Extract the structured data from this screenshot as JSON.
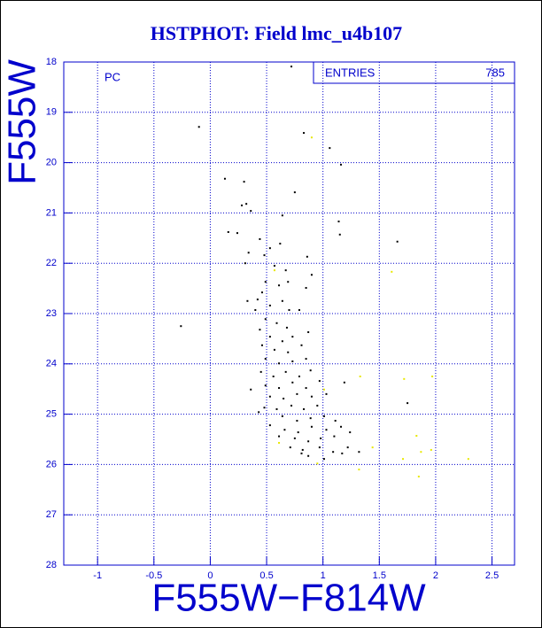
{
  "chart_data": {
    "type": "scatter",
    "title": "HSTPHOT: Field lmc_u4b107",
    "annotation": "PC",
    "stats_label": "ENTRIES",
    "stats_value": 785,
    "xlabel": "F555W−F814W",
    "ylabel": "F555W",
    "xlim": [
      -1.3,
      2.7
    ],
    "ylim": [
      28,
      18
    ],
    "xticks": [
      -1,
      -0.5,
      0,
      0.5,
      1,
      1.5,
      2,
      2.5
    ],
    "yticks": [
      18,
      19,
      20,
      21,
      22,
      23,
      24,
      25,
      26,
      27,
      28
    ],
    "grid": true,
    "axis_color": "#0000cc",
    "series": [
      {
        "color": "#000000",
        "x": [
          0.72,
          -0.1,
          0.83,
          1.06,
          1.16,
          0.13,
          0.3,
          0.75,
          0.28,
          0.32,
          0.36,
          0.64,
          1.14,
          0.16,
          0.24,
          1.15,
          1.66,
          0.44,
          0.62,
          0.53,
          0.34,
          0.48,
          0.86,
          0.31,
          0.57,
          0.67,
          0.9,
          0.49,
          0.61,
          0.69,
          0.46,
          0.85,
          0.33,
          0.42,
          0.53,
          0.64,
          0.4,
          0.7,
          0.79,
          -0.26,
          0.49,
          0.59,
          0.68,
          0.44,
          0.87,
          0.53,
          0.64,
          0.73,
          0.46,
          0.57,
          0.69,
          0.81,
          0.49,
          0.61,
          0.73,
          0.85,
          0.45,
          0.56,
          0.67,
          0.79,
          0.89,
          0.49,
          0.61,
          0.73,
          0.85,
          0.97,
          0.36,
          0.53,
          0.65,
          0.77,
          0.9,
          1.03,
          1.19,
          0.48,
          0.59,
          0.72,
          0.83,
          0.95,
          1.75,
          0.43,
          0.64,
          0.77,
          0.89,
          1.01,
          1.11,
          0.53,
          0.66,
          0.78,
          0.9,
          1.03,
          1.16,
          0.61,
          0.75,
          0.87,
          0.98,
          1.1,
          1.24,
          0.71,
          0.82,
          0.97,
          1.09,
          1.22,
          1.32,
          0.87,
          1.01,
          0.81,
          1.17
        ],
        "values": [
          18.09,
          19.29,
          19.41,
          19.71,
          20.04,
          20.32,
          20.38,
          20.59,
          20.85,
          20.82,
          20.96,
          21.05,
          21.17,
          21.38,
          21.4,
          21.43,
          21.57,
          21.52,
          21.61,
          21.7,
          21.79,
          21.84,
          21.87,
          22.0,
          22.05,
          22.14,
          22.23,
          22.37,
          22.44,
          22.37,
          22.58,
          22.49,
          22.75,
          22.72,
          22.84,
          22.75,
          22.93,
          22.93,
          22.93,
          23.25,
          23.11,
          23.19,
          23.28,
          23.32,
          23.37,
          23.46,
          23.55,
          23.46,
          23.63,
          23.72,
          23.77,
          23.63,
          23.9,
          23.99,
          23.95,
          23.9,
          24.16,
          24.25,
          24.16,
          24.25,
          24.13,
          24.43,
          24.48,
          24.37,
          24.48,
          24.34,
          24.51,
          24.65,
          24.69,
          24.6,
          24.65,
          24.6,
          24.37,
          24.87,
          24.9,
          24.83,
          24.9,
          24.83,
          24.78,
          24.96,
          25.04,
          25.13,
          25.08,
          25.04,
          25.13,
          25.22,
          25.31,
          25.36,
          25.25,
          25.31,
          25.25,
          25.44,
          25.48,
          25.54,
          25.48,
          25.44,
          25.36,
          25.66,
          25.71,
          25.66,
          25.75,
          25.66,
          25.75,
          25.83,
          25.89,
          25.78,
          25.78
        ]
      },
      {
        "color": "#e8e800",
        "x": [
          0.9,
          1.61,
          1.72,
          1.97,
          1.01,
          1.33,
          1.83,
          1.87,
          1.96,
          1.71,
          1.85,
          1.32,
          1.44,
          2.29,
          0.61,
          0.95,
          0.57
        ],
        "values": [
          19.5,
          22.17,
          24.3,
          24.25,
          24.51,
          24.25,
          25.43,
          25.75,
          25.71,
          25.89,
          26.24,
          26.1,
          25.66,
          25.89,
          25.57,
          25.98,
          22.14
        ]
      }
    ]
  }
}
